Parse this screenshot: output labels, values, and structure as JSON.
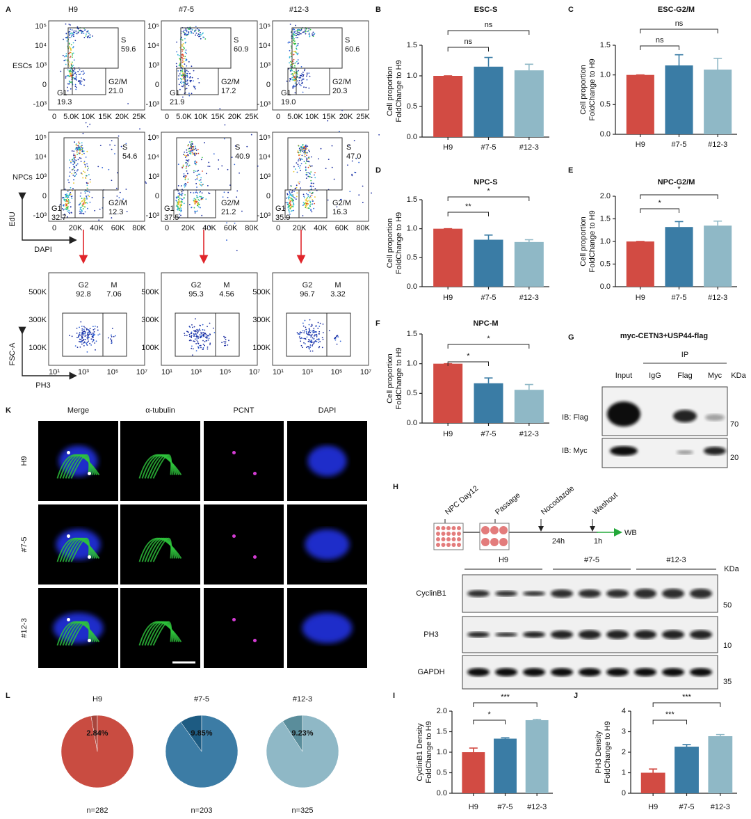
{
  "panel_labels": [
    "A",
    "B",
    "C",
    "D",
    "E",
    "F",
    "G",
    "H",
    "I",
    "J",
    "K",
    "L"
  ],
  "flow": {
    "columns": [
      "H9",
      "#7-5",
      "#12-3"
    ],
    "rows": [
      "ESCs",
      "NPCs"
    ],
    "axis_labels": {
      "cycle_y": "EdU",
      "cycle_x": "DAPI",
      "ph3_y": "FSC-A",
      "ph3_x": "PH3"
    },
    "cycle_y_ticks": [
      "10⁵",
      "10⁴",
      "10³",
      "0",
      "-10³"
    ],
    "esc_x_ticks": [
      "0",
      "5.0K",
      "10K",
      "15K",
      "20K",
      "25K"
    ],
    "npc_x_ticks": [
      "0",
      "20K",
      "40K",
      "60K",
      "80K"
    ],
    "ph3_y_ticks": [
      "500K",
      "300K",
      "100K"
    ],
    "ph3_x_ticks": [
      "10¹",
      "10³",
      "10⁵",
      "10⁷"
    ],
    "cycle_plots": [
      [
        [
          {
            "name": "S",
            "value": "59.6"
          },
          {
            "name": "G2/M",
            "value": "21.0"
          },
          {
            "name": "G1",
            "value": "19.3"
          }
        ],
        [
          {
            "name": "S",
            "value": "60.9"
          },
          {
            "name": "G2/M",
            "value": "17.2"
          },
          {
            "name": "G1",
            "value": "21.9"
          }
        ],
        [
          {
            "name": "S",
            "value": "60.6"
          },
          {
            "name": "G2/M",
            "value": "20.3"
          },
          {
            "name": "G1",
            "value": "19.0"
          }
        ]
      ],
      [
        [
          {
            "name": "S",
            "value": "54.6"
          },
          {
            "name": "G2/M",
            "value": "12.3"
          },
          {
            "name": "G1",
            "value": "32.7"
          }
        ],
        [
          {
            "name": "S",
            "value": "40.9"
          },
          {
            "name": "G2/M",
            "value": "21.2"
          },
          {
            "name": "G1",
            "value": "37.5"
          }
        ],
        [
          {
            "name": "S",
            "value": "47.0"
          },
          {
            "name": "G2/M",
            "value": "16.3"
          },
          {
            "name": "G1",
            "value": "35.9"
          }
        ]
      ]
    ],
    "ph3_plots": [
      [
        {
          "name": "G2",
          "value": "92.8"
        },
        {
          "name": "M",
          "value": "7.06"
        }
      ],
      [
        {
          "name": "G2",
          "value": "95.3"
        },
        {
          "name": "M",
          "value": "4.56"
        }
      ],
      [
        {
          "name": "G2",
          "value": "96.7"
        },
        {
          "name": "M",
          "value": "3.32"
        }
      ]
    ]
  },
  "blot_g": {
    "title": "myc-CETN3+USP44-flag",
    "ip": "IP",
    "lanes": [
      "Input",
      "IgG",
      "Flag",
      "Myc"
    ],
    "unit": "KDa",
    "rows": [
      {
        "name": "IB: Flag",
        "marker": "70"
      },
      {
        "name": "IB: Myc",
        "marker": "20"
      }
    ]
  },
  "timeline_h": {
    "steps": [
      "NPC Day12",
      "Passage",
      "Nocodazole",
      "Washout"
    ],
    "durations": [
      "24h",
      "1h"
    ],
    "end": "WB"
  },
  "blot_h": {
    "groups": [
      "H9",
      "#7-5",
      "#12-3"
    ],
    "unit": "KDa",
    "rows": [
      {
        "name": "CyclinB1",
        "marker": "50"
      },
      {
        "name": "PH3",
        "marker": "10"
      },
      {
        "name": "GAPDH",
        "marker": "35"
      }
    ]
  },
  "micrographs_k": {
    "channels": [
      "Merge",
      "α-tubulin",
      "PCNT",
      "DAPI"
    ],
    "lines": [
      "H9",
      "#7-5",
      "#12-3"
    ]
  },
  "chart_data": [
    {
      "type": "bar",
      "title": "ESC-S",
      "categories": [
        "H9",
        "#7-5",
        "#12-3"
      ],
      "values": [
        1.0,
        1.15,
        1.09
      ],
      "errors": [
        0,
        0.15,
        0.1
      ],
      "colors": [
        "#d24b43",
        "#3a7ca5",
        "#8fb8c6"
      ],
      "ylim": [
        0,
        1.5
      ],
      "yticks": [
        {
          "value": 0,
          "label": "0.0"
        },
        0.5,
        {
          "value": 1,
          "label": "1.0"
        },
        1.5
      ],
      "ylabel": [
        "Cell proportion",
        "FoldChange to H9"
      ],
      "significance": [
        "ns",
        "ns"
      ]
    },
    {
      "type": "bar",
      "title": "ESC-G2/M",
      "categories": [
        "H9",
        "#7-5",
        "#12-3"
      ],
      "values": [
        1.0,
        1.16,
        1.09
      ],
      "errors": [
        0,
        0.18,
        0.19
      ],
      "colors": [
        "#d24b43",
        "#3a7ca5",
        "#8fb8c6"
      ],
      "ylim": [
        0,
        1.5
      ],
      "yticks": [
        {
          "value": 0,
          "label": "0.0"
        },
        0.5,
        {
          "value": 1,
          "label": "1.0"
        },
        1.5
      ],
      "ylabel": [
        "Cell proportion",
        "FoldChange to H9"
      ],
      "significance": [
        "ns",
        "ns"
      ]
    },
    {
      "type": "bar",
      "title": "NPC-S",
      "categories": [
        "H9",
        "#7-5",
        "#12-3"
      ],
      "values": [
        1.0,
        0.81,
        0.77
      ],
      "errors": [
        0,
        0.08,
        0.04
      ],
      "colors": [
        "#d24b43",
        "#3a7ca5",
        "#8fb8c6"
      ],
      "ylim": [
        0,
        1.5
      ],
      "yticks": [
        {
          "value": 0,
          "label": "0.0"
        },
        0.5,
        {
          "value": 1,
          "label": "1.0"
        },
        1.5
      ],
      "ylabel": [
        "Cell proportion",
        "FoldChange to H9"
      ],
      "significance": [
        "**",
        "*"
      ]
    },
    {
      "type": "bar",
      "title": "NPC-G2/M",
      "categories": [
        "H9",
        "#7-5",
        "#12-3"
      ],
      "values": [
        1.0,
        1.32,
        1.35
      ],
      "errors": [
        0,
        0.12,
        0.1
      ],
      "colors": [
        "#d24b43",
        "#3a7ca5",
        "#8fb8c6"
      ],
      "ylim": [
        0,
        2
      ],
      "yticks": [
        {
          "value": 0,
          "label": "0.0"
        },
        0.5,
        {
          "value": 1,
          "label": "1.0"
        },
        1.5,
        {
          "value": 2,
          "label": "2.0"
        }
      ],
      "ylabel": [
        "Cell proportion",
        "FoldChange to H9"
      ],
      "significance": [
        "*",
        "*"
      ]
    },
    {
      "type": "bar",
      "title": "NPC-M",
      "categories": [
        "H9",
        "#7-5",
        "#12-3"
      ],
      "values": [
        1.0,
        0.67,
        0.56
      ],
      "errors": [
        0,
        0.09,
        0.09
      ],
      "colors": [
        "#d24b43",
        "#3a7ca5",
        "#8fb8c6"
      ],
      "ylim": [
        0,
        1.5
      ],
      "yticks": [
        {
          "value": 0,
          "label": "0.0"
        },
        0.5,
        {
          "value": 1,
          "label": "1.0"
        },
        1.5
      ],
      "ylabel": [
        "Cell proportion",
        "FoldChange to H9"
      ],
      "significance": [
        "*",
        "*"
      ]
    },
    {
      "type": "bar",
      "categories": [
        "H9",
        "#7-5",
        "#12-3"
      ],
      "values": [
        1.0,
        1.33,
        1.78
      ],
      "errors": [
        0.1,
        0.02,
        0.02
      ],
      "colors": [
        "#d24b43",
        "#3a7ca5",
        "#8fb8c6"
      ],
      "ylim": [
        0,
        2
      ],
      "yticks": [
        {
          "value": 0,
          "label": "0.0"
        },
        0.5,
        {
          "value": 1,
          "label": "1.0"
        },
        1.5,
        {
          "value": 2,
          "label": "2.0"
        }
      ],
      "ylabel": [
        "CyclinB1 Density",
        "FoldChange to H9"
      ],
      "significance": [
        "*",
        "***"
      ]
    },
    {
      "type": "bar",
      "categories": [
        "H9",
        "#7-5",
        "#12-3"
      ],
      "values": [
        1.0,
        2.27,
        2.78
      ],
      "errors": [
        0.18,
        0.1,
        0.08
      ],
      "colors": [
        "#d24b43",
        "#3a7ca5",
        "#8fb8c6"
      ],
      "ylim": [
        0,
        4
      ],
      "yticks": [
        0,
        1,
        2,
        3,
        4
      ],
      "ylabel": [
        "PH3 Density",
        "FoldChange to H9"
      ],
      "significance": [
        "***",
        "***"
      ]
    },
    {
      "type": "pie",
      "title": "H9",
      "values": [
        2.84,
        97.16
      ],
      "value_labels": [
        "2.84%",
        null
      ],
      "colors": [
        "#a8463d",
        "#c94c41"
      ],
      "footnote": "n=282"
    },
    {
      "type": "pie",
      "title": "#7-5",
      "values": [
        9.85,
        90.15
      ],
      "value_labels": [
        "9.85%",
        null
      ],
      "colors": [
        "#1d5b82",
        "#3c7ca5"
      ],
      "footnote": "n=203"
    },
    {
      "type": "pie",
      "title": "#12-3",
      "values": [
        9.23,
        90.77
      ],
      "value_labels": [
        "9.23%",
        null
      ],
      "colors": [
        "#5a8d9b",
        "#8fb8c6"
      ],
      "footnote": "n=325"
    }
  ]
}
